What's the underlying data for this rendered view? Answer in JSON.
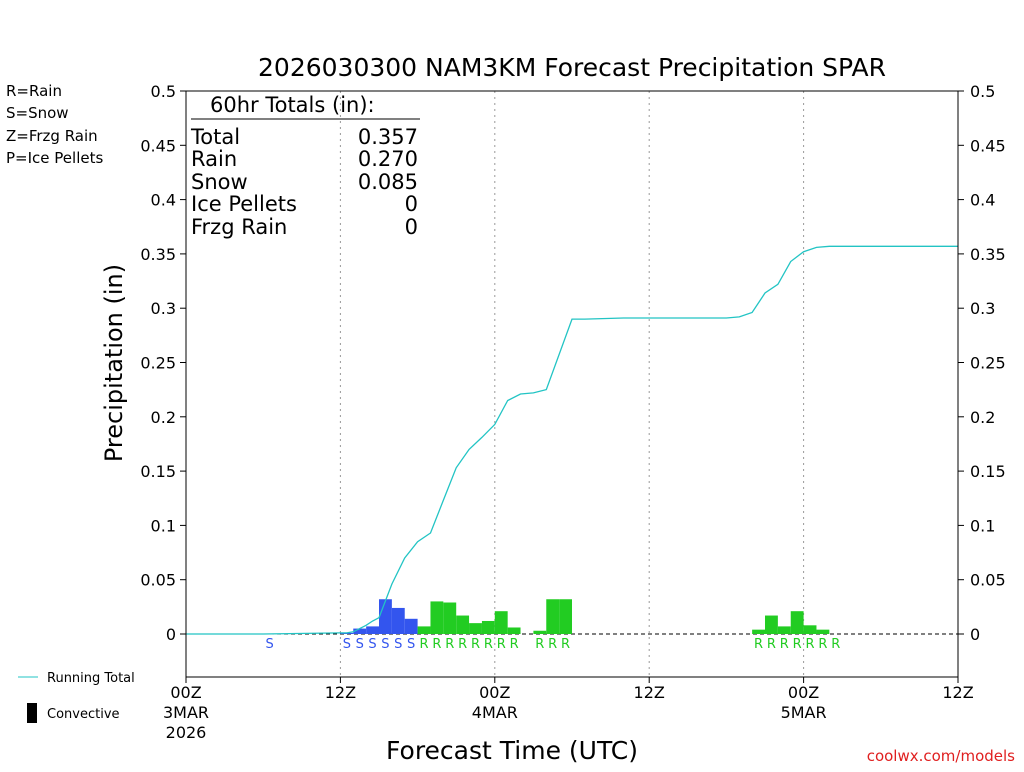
{
  "chart_data": {
    "type": "bar",
    "title": "2026030300 NAM3KM Forecast Precipitation SPAR",
    "xlabel": "Forecast Time (UTC)",
    "ylabel": "Precipitation (in)",
    "ylim": [
      -0.04,
      0.5
    ],
    "xlim": [
      0,
      60
    ],
    "grid": "dotted vertical lines at 12-hour marks",
    "y_ticks": [
      0,
      0.05,
      0.1,
      0.15,
      0.2,
      0.25,
      0.3,
      0.35,
      0.4,
      0.45,
      0.5
    ],
    "y_tick_labels": [
      "0",
      "0.05",
      "0.1",
      "0.15",
      "0.2",
      "0.25",
      "0.3",
      "0.35",
      "0.4",
      "0.45",
      "0.5"
    ],
    "x_ticks": [
      {
        "hour": 0,
        "lines": [
          "00Z",
          "3MAR",
          "2026"
        ]
      },
      {
        "hour": 12,
        "lines": [
          "12Z"
        ]
      },
      {
        "hour": 24,
        "lines": [
          "00Z",
          "4MAR"
        ]
      },
      {
        "hour": 36,
        "lines": [
          "12Z"
        ]
      },
      {
        "hour": 48,
        "lines": [
          "00Z",
          "5MAR"
        ]
      },
      {
        "hour": 60,
        "lines": [
          "12Z"
        ]
      }
    ],
    "legend": {
      "types": [
        {
          "code": "R",
          "label": "R=Rain",
          "color": "#22cc22"
        },
        {
          "code": "S",
          "label": "S=Snow",
          "color": "#3355ee"
        },
        {
          "code": "Z",
          "label": "Z=Frzg Rain",
          "color": "#f08a3c"
        },
        {
          "code": "P",
          "label": "P=Ice Pellets",
          "color": "#ee22aa"
        }
      ],
      "running_total_label": "Running Total",
      "convective_label": "Convective"
    },
    "totals_box": {
      "heading": "60hr Totals (in):",
      "rows": [
        {
          "label": "Total",
          "value": "0.357"
        },
        {
          "label": "Rain",
          "value": "0.270"
        },
        {
          "label": "Snow",
          "value": "0.085"
        },
        {
          "label": "Ice Pellets",
          "value": "0"
        },
        {
          "label": "Frzg Rain",
          "value": "0"
        }
      ]
    },
    "bars": [
      {
        "hour": 13,
        "value": 0.001,
        "type": "S"
      },
      {
        "hour": 14,
        "value": 0.005,
        "type": "S"
      },
      {
        "hour": 15,
        "value": 0.007,
        "type": "S"
      },
      {
        "hour": 16,
        "value": 0.032,
        "type": "S"
      },
      {
        "hour": 17,
        "value": 0.024,
        "type": "S"
      },
      {
        "hour": 18,
        "value": 0.014,
        "type": "S"
      },
      {
        "hour": 19,
        "value": 0.007,
        "type": "R"
      },
      {
        "hour": 20,
        "value": 0.03,
        "type": "R"
      },
      {
        "hour": 21,
        "value": 0.029,
        "type": "R"
      },
      {
        "hour": 22,
        "value": 0.017,
        "type": "R"
      },
      {
        "hour": 23,
        "value": 0.01,
        "type": "R"
      },
      {
        "hour": 24,
        "value": 0.012,
        "type": "R"
      },
      {
        "hour": 25,
        "value": 0.021,
        "type": "R"
      },
      {
        "hour": 26,
        "value": 0.006,
        "type": "R"
      },
      {
        "hour": 28,
        "value": 0.003,
        "type": "R"
      },
      {
        "hour": 29,
        "value": 0.032,
        "type": "R"
      },
      {
        "hour": 30,
        "value": 0.032,
        "type": "R"
      },
      {
        "hour": 45,
        "value": 0.004,
        "type": "R"
      },
      {
        "hour": 46,
        "value": 0.017,
        "type": "R"
      },
      {
        "hour": 47,
        "value": 0.007,
        "type": "R"
      },
      {
        "hour": 48,
        "value": 0.021,
        "type": "R"
      },
      {
        "hour": 49,
        "value": 0.008,
        "type": "R"
      },
      {
        "hour": 50,
        "value": 0.004,
        "type": "R"
      }
    ],
    "type_markers": [
      {
        "hour": 7,
        "type": "S"
      },
      {
        "hour": 13,
        "type": "S"
      },
      {
        "hour": 14,
        "type": "S"
      },
      {
        "hour": 15,
        "type": "S"
      },
      {
        "hour": 16,
        "type": "S"
      },
      {
        "hour": 17,
        "type": "S"
      },
      {
        "hour": 18,
        "type": "S"
      },
      {
        "hour": 19,
        "type": "R"
      },
      {
        "hour": 20,
        "type": "R"
      },
      {
        "hour": 21,
        "type": "R"
      },
      {
        "hour": 22,
        "type": "R"
      },
      {
        "hour": 23,
        "type": "R"
      },
      {
        "hour": 24,
        "type": "R"
      },
      {
        "hour": 25,
        "type": "R"
      },
      {
        "hour": 26,
        "type": "R"
      },
      {
        "hour": 28,
        "type": "R"
      },
      {
        "hour": 29,
        "type": "R"
      },
      {
        "hour": 30,
        "type": "R"
      },
      {
        "hour": 45,
        "type": "R"
      },
      {
        "hour": 46,
        "type": "R"
      },
      {
        "hour": 47,
        "type": "R"
      },
      {
        "hour": 48,
        "type": "R"
      },
      {
        "hour": 49,
        "type": "R"
      },
      {
        "hour": 50,
        "type": "R"
      },
      {
        "hour": 51,
        "type": "R"
      }
    ],
    "running_total": {
      "name": "Running Total",
      "color": "#22c4c4",
      "hours": [
        0,
        6,
        12,
        12.5,
        13,
        14,
        14.5,
        15,
        16,
        17,
        18,
        19,
        20,
        21,
        22,
        23,
        24,
        25,
        26,
        27,
        28,
        30,
        31,
        34,
        36,
        42,
        43,
        44,
        45,
        46,
        47,
        48,
        49,
        50,
        54,
        58,
        60
      ],
      "values": [
        0,
        0,
        0.001,
        0.001,
        0.002,
        0.008,
        0.012,
        0.015,
        0.046,
        0.07,
        0.085,
        0.093,
        0.123,
        0.153,
        0.17,
        0.181,
        0.193,
        0.215,
        0.221,
        0.222,
        0.225,
        0.29,
        0.29,
        0.291,
        0.291,
        0.291,
        0.292,
        0.296,
        0.314,
        0.322,
        0.343,
        0.352,
        0.356,
        0.357,
        0.357,
        0.357,
        0.357
      ]
    }
  },
  "footer": {
    "credit": "coolwx.com/models"
  }
}
